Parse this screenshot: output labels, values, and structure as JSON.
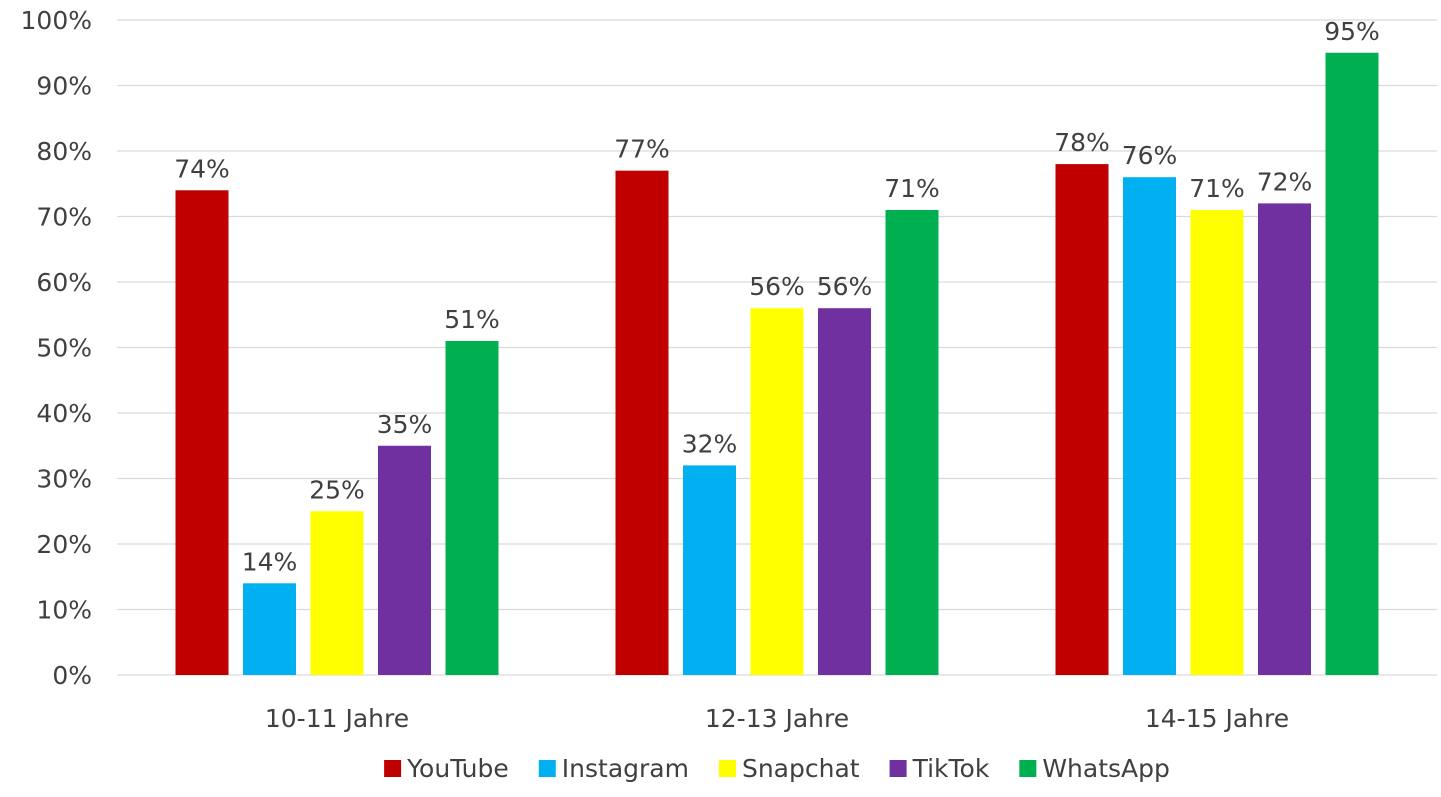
{
  "chart_data": {
    "type": "bar",
    "title": "",
    "xlabel": "",
    "ylabel": "",
    "ylim": [
      0,
      100
    ],
    "y_tick_step": 10,
    "y_tick_suffix": "%",
    "grid": true,
    "legend_position": "bottom",
    "categories": [
      "10-11 Jahre",
      "12-13 Jahre",
      "14-15 Jahre"
    ],
    "series": [
      {
        "name": "YouTube",
        "color": "#c00000",
        "values": [
          74,
          77,
          78
        ]
      },
      {
        "name": "Instagram",
        "color": "#00b0f0",
        "values": [
          14,
          32,
          76
        ]
      },
      {
        "name": "Snapchat",
        "color": "#ffff00",
        "values": [
          25,
          56,
          71
        ]
      },
      {
        "name": "TikTok",
        "color": "#7030a0",
        "values": [
          35,
          56,
          72
        ]
      },
      {
        "name": "WhatsApp",
        "color": "#00b050",
        "values": [
          51,
          71,
          95
        ]
      }
    ]
  }
}
